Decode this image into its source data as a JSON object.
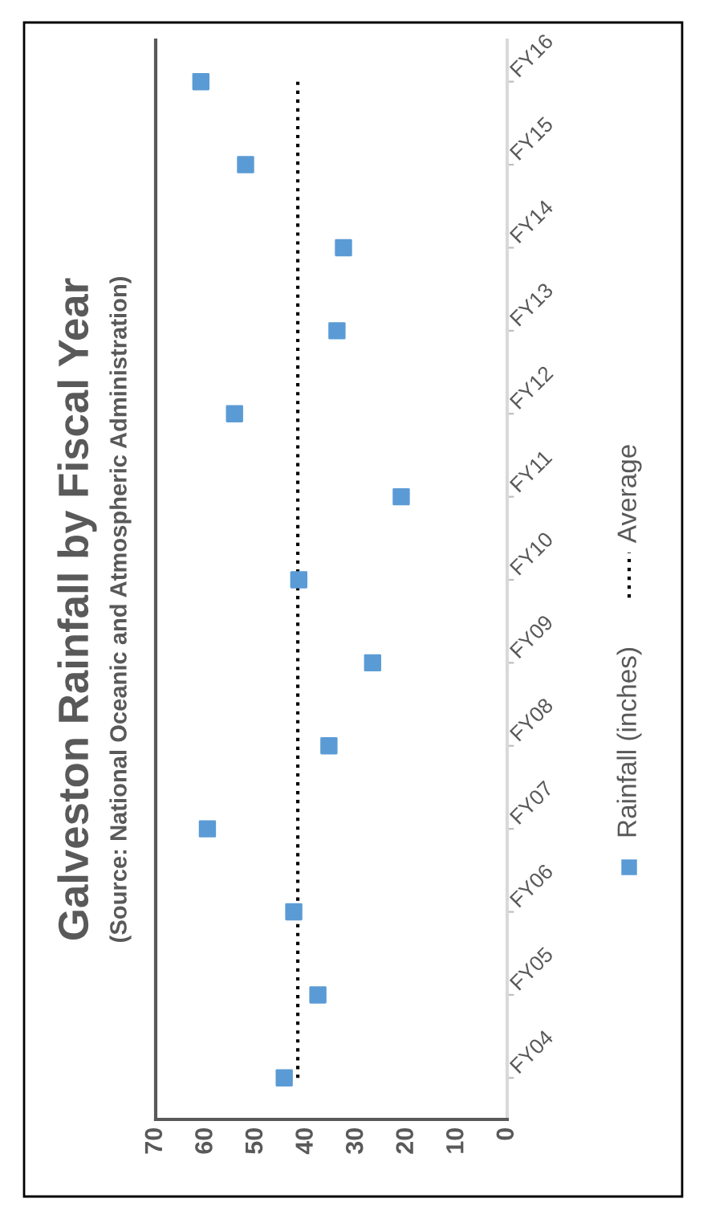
{
  "chart_data": {
    "type": "scatter",
    "orientation": "horizontal",
    "title": "Galveston Rainfall by Fiscal Year",
    "subtitle": "(Source: National Oceanic and Atmospheric Administration)",
    "categories": [
      "FY16",
      "FY15",
      "FY14",
      "FY13",
      "FY12",
      "FY11",
      "FY10",
      "FY09",
      "FY08",
      "FY07",
      "FY06",
      "FY05",
      "FY04"
    ],
    "series": [
      {
        "name": "Rainfall (inches)",
        "color": "#5b9bd5",
        "marker": "square",
        "values": [
          61.0,
          52.1,
          32.6,
          33.9,
          54.3,
          21.1,
          41.5,
          26.8,
          35.5,
          59.7,
          42.5,
          37.7,
          44.4
        ]
      },
      {
        "name": "Average",
        "type": "line",
        "color": "#000000",
        "marker": "none",
        "line_style": "dotted",
        "values": [
          41.7,
          41.7,
          41.7,
          41.7,
          41.7,
          41.7,
          41.7,
          41.7,
          41.7,
          41.7,
          41.7,
          41.7,
          41.7
        ]
      }
    ],
    "xlim": [
      70,
      0
    ],
    "xticks": [
      0,
      10,
      20,
      30,
      40,
      50,
      60,
      70
    ],
    "grid": false,
    "legend": "right"
  }
}
